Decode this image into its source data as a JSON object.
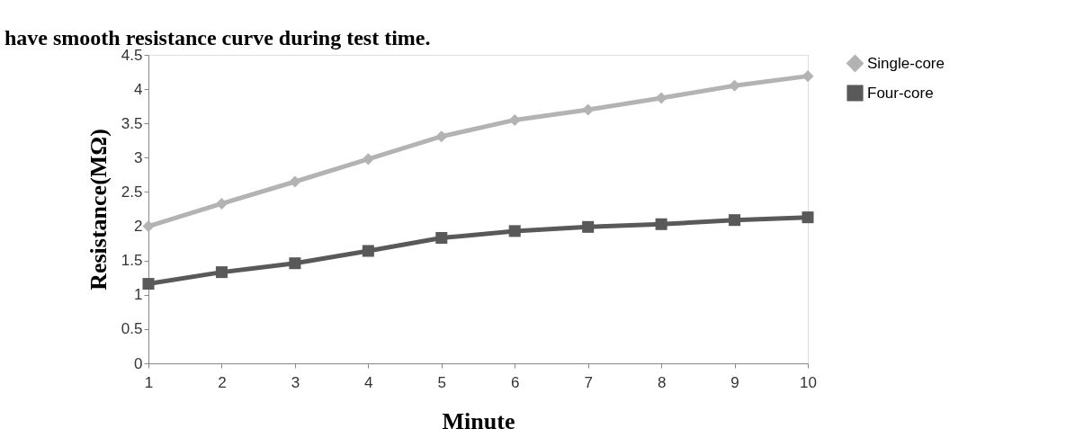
{
  "chart_data": {
    "type": "line",
    "xlabel": "Minute",
    "ylabel": "Resistance(MΩ)",
    "annotations": [
      "have smooth resistance curve during test time."
    ],
    "x": [
      1,
      2,
      3,
      4,
      5,
      6,
      7,
      8,
      9,
      10
    ],
    "xlim": [
      1,
      10
    ],
    "xticks": [
      1,
      2,
      3,
      4,
      5,
      6,
      7,
      8,
      9,
      10
    ],
    "ylim": [
      0,
      4.5
    ],
    "yticks": [
      0,
      0.5,
      1,
      1.5,
      2,
      2.5,
      3,
      3.5,
      4,
      4.5
    ],
    "grid": false,
    "legend": "right",
    "line_style": "solid",
    "series": [
      {
        "name": "Single-core",
        "color": "#b3b3b3",
        "marker": "diamond",
        "values": [
          2.0,
          2.33,
          2.65,
          2.98,
          3.31,
          3.55,
          3.7,
          3.87,
          4.05,
          4.19
        ]
      },
      {
        "name": "Four-core",
        "color": "#595959",
        "marker": "square",
        "values": [
          1.16,
          1.33,
          1.46,
          1.64,
          1.83,
          1.93,
          1.99,
          2.03,
          2.09,
          2.13
        ]
      }
    ]
  }
}
